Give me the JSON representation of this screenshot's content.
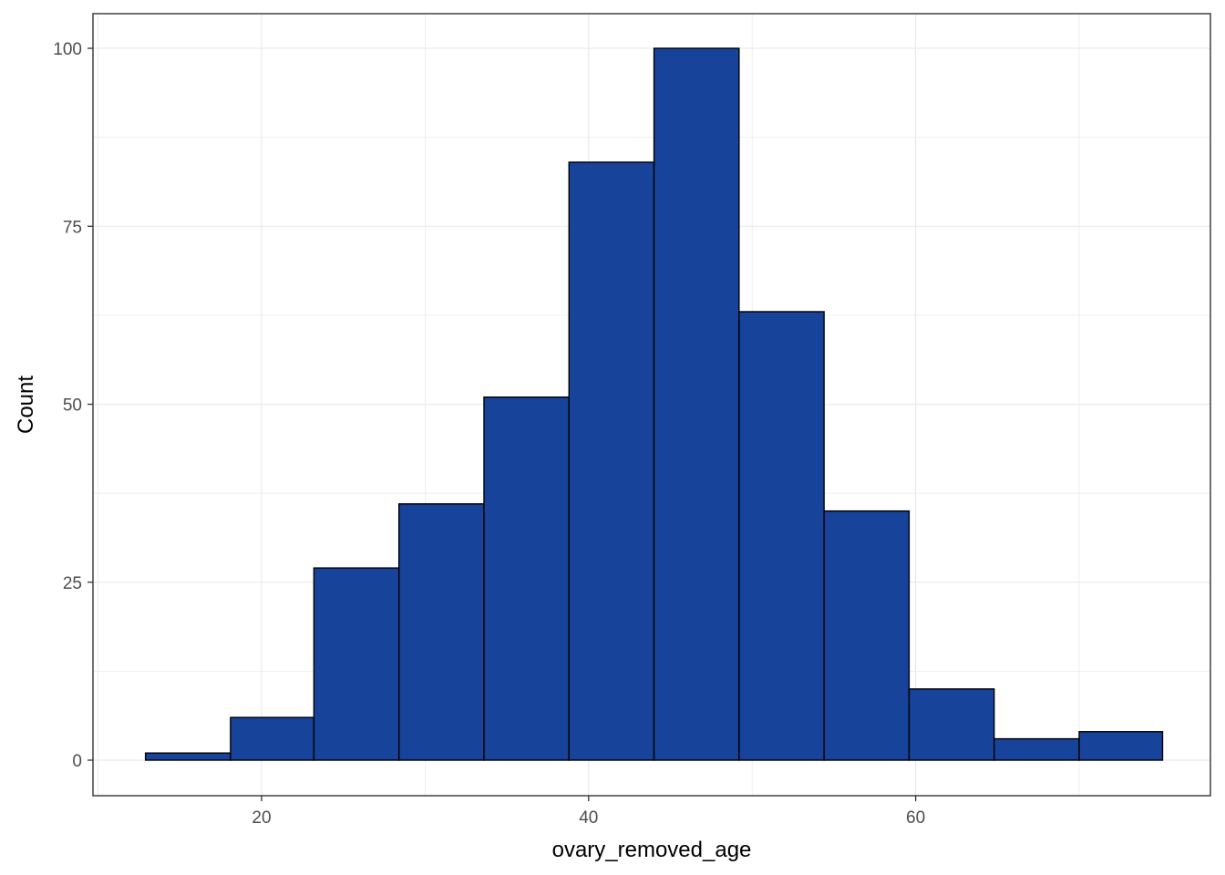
{
  "chart_data": {
    "type": "bar",
    "subtype": "histogram",
    "xlabel": "ovary_removed_age",
    "ylabel": "Count",
    "xlim": [
      10,
      75
    ],
    "ylim": [
      0,
      100
    ],
    "x_ticks": [
      20,
      40,
      60
    ],
    "x_tick_labels": [
      "20",
      "40",
      "60"
    ],
    "y_ticks": [
      0,
      25,
      50,
      75,
      100
    ],
    "y_tick_labels": [
      "0",
      "25",
      "50",
      "75",
      "100"
    ],
    "bins": [
      {
        "x0": 12.9,
        "x1": 18.1,
        "count": 1
      },
      {
        "x0": 18.1,
        "x1": 23.2,
        "count": 6
      },
      {
        "x0": 23.2,
        "x1": 28.4,
        "count": 27
      },
      {
        "x0": 28.4,
        "x1": 33.6,
        "count": 36
      },
      {
        "x0": 33.6,
        "x1": 38.8,
        "count": 51
      },
      {
        "x0": 38.8,
        "x1": 44.0,
        "count": 84
      },
      {
        "x0": 44.0,
        "x1": 49.2,
        "count": 100
      },
      {
        "x0": 49.2,
        "x1": 54.4,
        "count": 63
      },
      {
        "x0": 54.4,
        "x1": 59.6,
        "count": 35
      },
      {
        "x0": 59.6,
        "x1": 64.8,
        "count": 10
      },
      {
        "x0": 64.8,
        "x1": 70.0,
        "count": 3
      },
      {
        "x0": 70.0,
        "x1": 75.1,
        "count": 4
      }
    ],
    "bar_fill": "#18439A",
    "bar_outline": "#000000",
    "grid": true,
    "grid_color": "#ebebeb",
    "panel_border": "#333333",
    "legend": "none"
  }
}
